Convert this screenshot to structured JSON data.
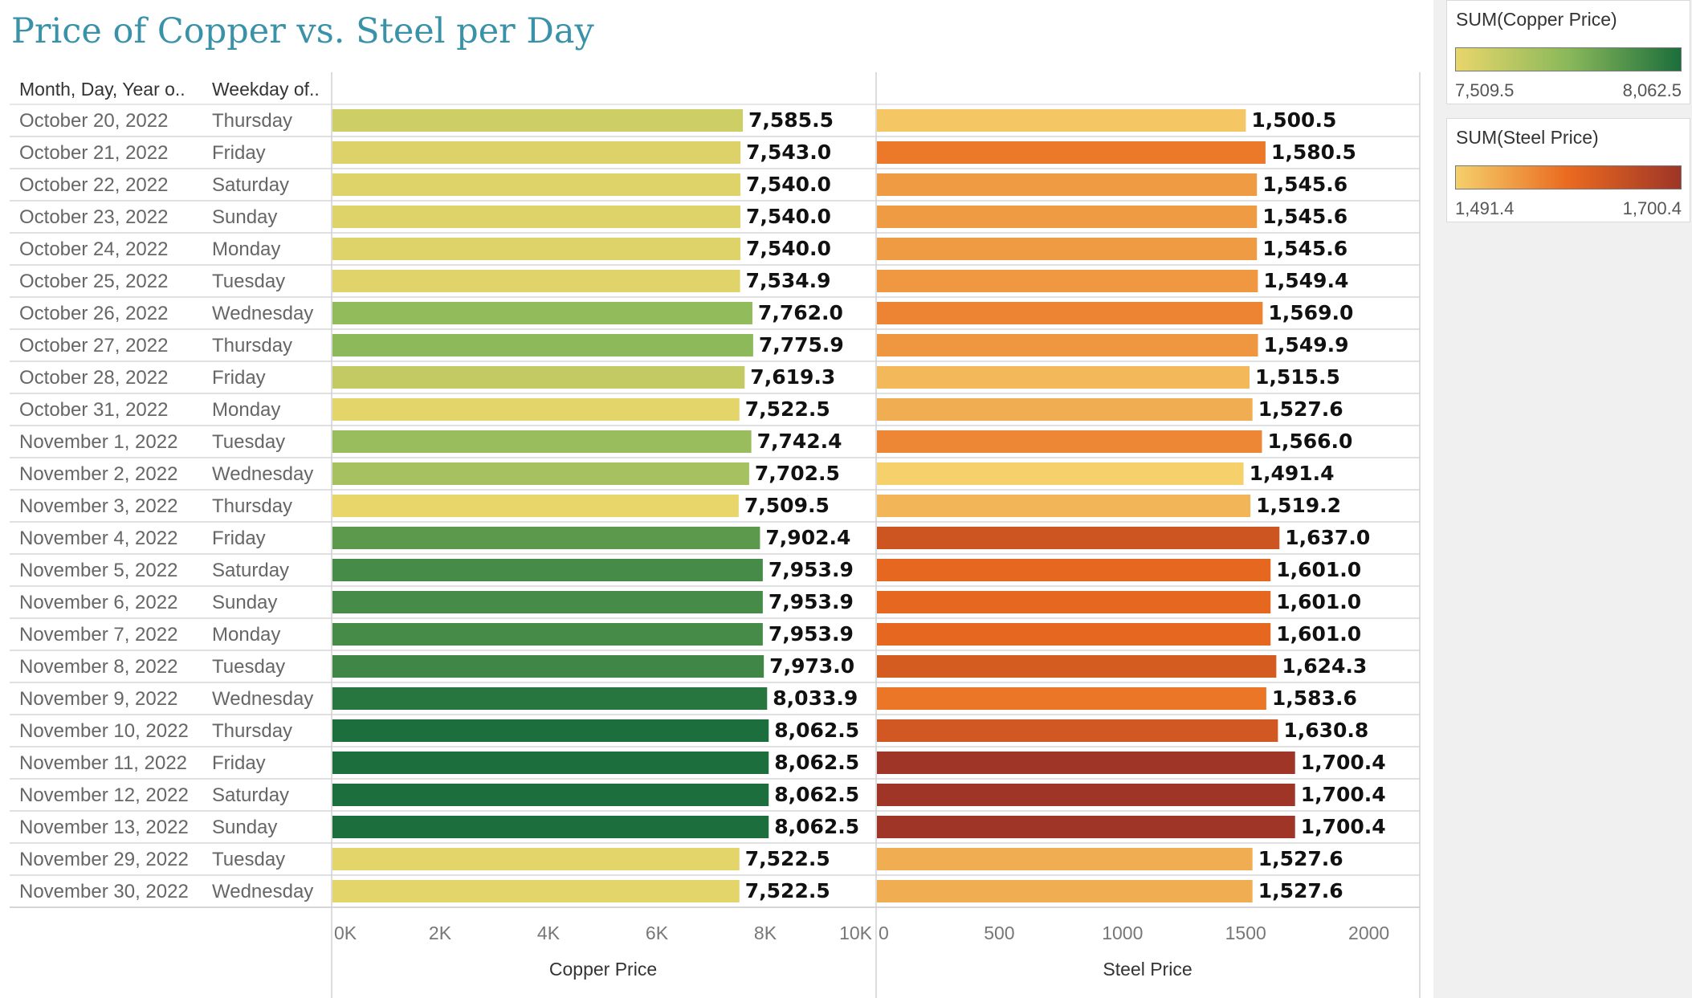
{
  "title": "Price of Copper vs. Steel per Day",
  "headers": {
    "date": "Month, Day, Year o..",
    "weekday": "Weekday of.."
  },
  "rows": [
    {
      "date": "October 20, 2022",
      "weekday": "Thursday"
    },
    {
      "date": "October 21, 2022",
      "weekday": "Friday"
    },
    {
      "date": "October 22, 2022",
      "weekday": "Saturday"
    },
    {
      "date": "October 23, 2022",
      "weekday": "Sunday"
    },
    {
      "date": "October 24, 2022",
      "weekday": "Monday"
    },
    {
      "date": "October 25, 2022",
      "weekday": "Tuesday"
    },
    {
      "date": "October 26, 2022",
      "weekday": "Wednesday"
    },
    {
      "date": "October 27, 2022",
      "weekday": "Thursday"
    },
    {
      "date": "October 28, 2022",
      "weekday": "Friday"
    },
    {
      "date": "October 31, 2022",
      "weekday": "Monday"
    },
    {
      "date": "November 1, 2022",
      "weekday": "Tuesday"
    },
    {
      "date": "November 2, 2022",
      "weekday": "Wednesday"
    },
    {
      "date": "November 3, 2022",
      "weekday": "Thursday"
    },
    {
      "date": "November 4, 2022",
      "weekday": "Friday"
    },
    {
      "date": "November 5, 2022",
      "weekday": "Saturday"
    },
    {
      "date": "November 6, 2022",
      "weekday": "Sunday"
    },
    {
      "date": "November 7, 2022",
      "weekday": "Monday"
    },
    {
      "date": "November 8, 2022",
      "weekday": "Tuesday"
    },
    {
      "date": "November 9, 2022",
      "weekday": "Wednesday"
    },
    {
      "date": "November 10, 2022",
      "weekday": "Thursday"
    },
    {
      "date": "November 11, 2022",
      "weekday": "Friday"
    },
    {
      "date": "November 12, 2022",
      "weekday": "Saturday"
    },
    {
      "date": "November 13, 2022",
      "weekday": "Sunday"
    },
    {
      "date": "November 29, 2022",
      "weekday": "Tuesday"
    },
    {
      "date": "November 30, 2022",
      "weekday": "Wednesday"
    }
  ],
  "legends": {
    "copper": {
      "title": "SUM(Copper Price)",
      "min": "7,509.5",
      "max": "8,062.5",
      "colors": [
        "#e8d66b",
        "#8ab85a",
        "#1c6e3c"
      ]
    },
    "steel": {
      "title": "SUM(Steel Price)",
      "min": "1,491.4",
      "max": "1,700.4",
      "colors": [
        "#f5d06b",
        "#ea6a1f",
        "#9e3527"
      ]
    }
  },
  "chart_data": {
    "type": "bar",
    "orientation": "horizontal",
    "categories": [
      "October 20, 2022",
      "October 21, 2022",
      "October 22, 2022",
      "October 23, 2022",
      "October 24, 2022",
      "October 25, 2022",
      "October 26, 2022",
      "October 27, 2022",
      "October 28, 2022",
      "October 31, 2022",
      "November 1, 2022",
      "November 2, 2022",
      "November 3, 2022",
      "November 4, 2022",
      "November 5, 2022",
      "November 6, 2022",
      "November 7, 2022",
      "November 8, 2022",
      "November 9, 2022",
      "November 10, 2022",
      "November 11, 2022",
      "November 12, 2022",
      "November 13, 2022",
      "November 29, 2022",
      "November 30, 2022"
    ],
    "panels": [
      {
        "series": "Copper Price",
        "xlabel": "Copper Price",
        "xlim": [
          0,
          10000
        ],
        "ticks": [
          0,
          2000,
          4000,
          6000,
          8000,
          10000
        ],
        "tick_labels": [
          "0K",
          "2K",
          "4K",
          "6K",
          "8K",
          "10K"
        ],
        "values": [
          7585.5,
          7543.0,
          7540.0,
          7540.0,
          7540.0,
          7534.9,
          7762.0,
          7775.9,
          7619.3,
          7522.5,
          7742.4,
          7702.5,
          7509.5,
          7902.4,
          7953.9,
          7953.9,
          7953.9,
          7973.0,
          8033.9,
          8062.5,
          8062.5,
          8062.5,
          8062.5,
          7522.5,
          7522.5
        ],
        "labels": [
          "7,585.5",
          "7,543.0",
          "7,540.0",
          "7,540.0",
          "7,540.0",
          "7,534.9",
          "7,762.0",
          "7,775.9",
          "7,619.3",
          "7,522.5",
          "7,742.4",
          "7,702.5",
          "7,509.5",
          "7,902.4",
          "7,953.9",
          "7,953.9",
          "7,953.9",
          "7,973.0",
          "8,033.9",
          "8,062.5",
          "8,062.5",
          "8,062.5",
          "8,062.5",
          "7,522.5",
          "7,522.5"
        ],
        "color_domain": [
          7509.5,
          8062.5
        ]
      },
      {
        "series": "Steel Price",
        "xlabel": "Steel Price",
        "xlim": [
          0,
          2200
        ],
        "ticks": [
          0,
          500,
          1000,
          1500,
          2000
        ],
        "tick_labels": [
          "0",
          "500",
          "1000",
          "1500",
          "2000"
        ],
        "values": [
          1500.5,
          1580.5,
          1545.6,
          1545.6,
          1545.6,
          1549.4,
          1569.0,
          1549.9,
          1515.5,
          1527.6,
          1566.0,
          1491.4,
          1519.2,
          1637.0,
          1601.0,
          1601.0,
          1601.0,
          1624.3,
          1583.6,
          1630.8,
          1700.4,
          1700.4,
          1700.4,
          1527.6,
          1527.6
        ],
        "labels": [
          "1,500.5",
          "1,580.5",
          "1,545.6",
          "1,545.6",
          "1,545.6",
          "1,549.4",
          "1,569.0",
          "1,549.9",
          "1,515.5",
          "1,527.6",
          "1,566.0",
          "1,491.4",
          "1,519.2",
          "1,637.0",
          "1,601.0",
          "1,601.0",
          "1,601.0",
          "1,624.3",
          "1,583.6",
          "1,630.8",
          "1,700.4",
          "1,700.4",
          "1,700.4",
          "1,527.6",
          "1,527.6"
        ],
        "color_domain": [
          1491.4,
          1700.4
        ]
      }
    ],
    "grid": false,
    "legend": "right"
  }
}
